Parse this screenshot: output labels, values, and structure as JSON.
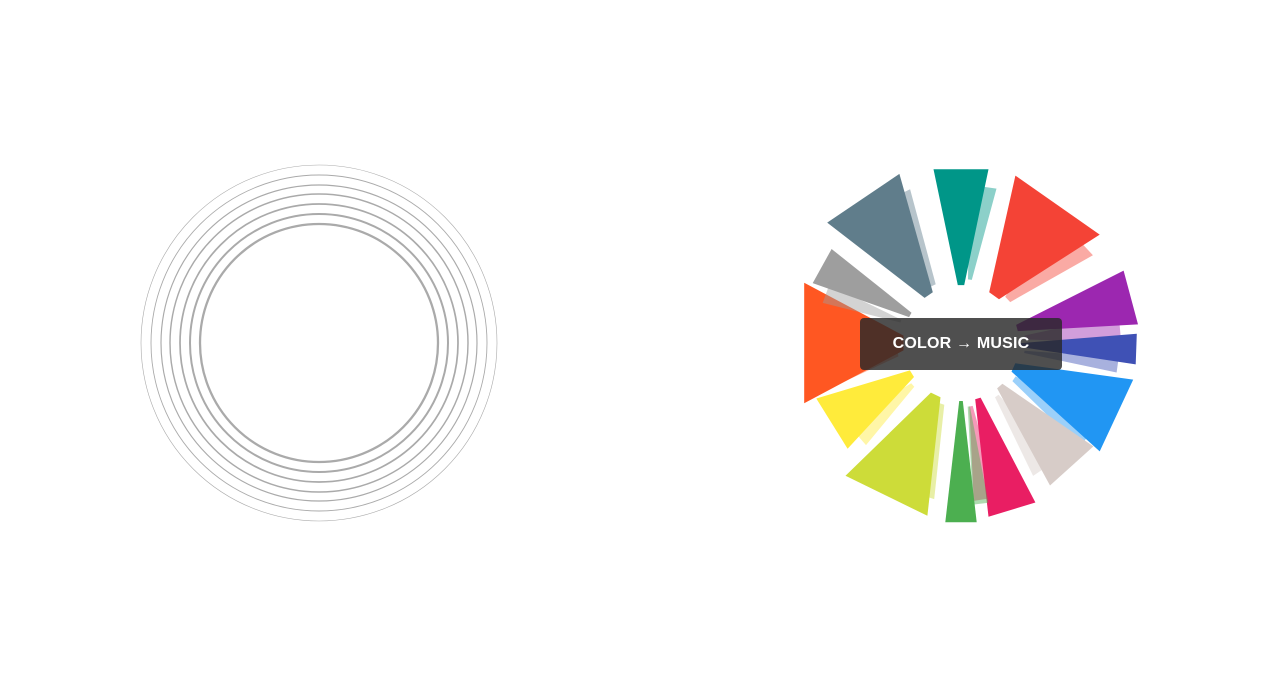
{
  "center_button": {
    "label": "COLOR → MUSIC"
  },
  "rings": {
    "count": 8,
    "color": "#aaaaaa"
  },
  "wheel": {
    "segments": [
      {
        "name": "teal",
        "color": "#009688"
      },
      {
        "name": "red",
        "color": "#F44336"
      },
      {
        "name": "purple",
        "color": "#9C27B0"
      },
      {
        "name": "indigo",
        "color": "#3F51B5"
      },
      {
        "name": "blue",
        "color": "#2196F3"
      },
      {
        "name": "taupe",
        "color": "#D7CCC8"
      },
      {
        "name": "pink",
        "color": "#E91E63"
      },
      {
        "name": "green",
        "color": "#4CAF50"
      },
      {
        "name": "lime",
        "color": "#CDDC39"
      },
      {
        "name": "yellow",
        "color": "#FFEB3B"
      },
      {
        "name": "deep-orange",
        "color": "#FF5722"
      },
      {
        "name": "grey",
        "color": "#9E9E9E"
      },
      {
        "name": "blue-grey",
        "color": "#607D8B"
      }
    ]
  }
}
